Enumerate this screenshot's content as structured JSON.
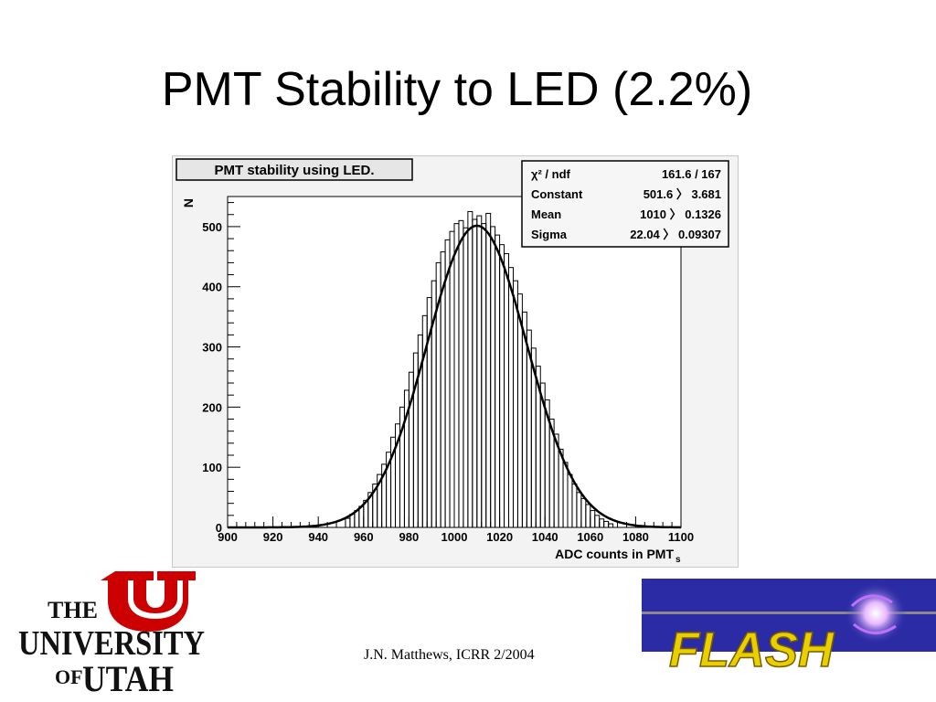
{
  "slide": {
    "title": "PMT Stability to LED (2.2%)",
    "footer": "J.N. Matthews, ICRR 2/2004"
  },
  "logos": {
    "utah": {
      "line1": "THE",
      "line2": "UNIVERSITY",
      "line3_of": "OF",
      "line3_utah": "UTAH",
      "color": "#cc0000"
    },
    "flash": {
      "text": "FLASH",
      "bg": "#2b2ba6",
      "text_color": "#e8d000"
    }
  },
  "chart_data": {
    "type": "histogram",
    "title": "PMT stability using LED.",
    "xlabel": "ADC counts in PMT",
    "xlabel_sub": "s",
    "ylabel": "N",
    "xlim": [
      900,
      1100
    ],
    "ylim": [
      0,
      550
    ],
    "xticks": [
      900,
      920,
      940,
      960,
      980,
      1000,
      1020,
      1040,
      1060,
      1080,
      1100
    ],
    "yticks": [
      0,
      100,
      200,
      300,
      400,
      500
    ],
    "bin_width": 2,
    "stats_box": [
      {
        "label": "χ² / ndf",
        "value": "161.6 / 167"
      },
      {
        "label": "Constant",
        "value": "501.6 〉 3.681"
      },
      {
        "label": "Mean",
        "value": "1010 〉 0.1326"
      },
      {
        "label": "Sigma",
        "value": "22.04 〉 0.09307"
      }
    ],
    "fit": {
      "function": "gaus",
      "constant": 501.6,
      "mean": 1010,
      "sigma": 22.04
    },
    "histogram": {
      "x": [
        952,
        954,
        956,
        958,
        960,
        962,
        964,
        966,
        968,
        970,
        972,
        974,
        976,
        978,
        980,
        982,
        984,
        986,
        988,
        990,
        992,
        994,
        996,
        998,
        1000,
        1002,
        1004,
        1006,
        1008,
        1010,
        1012,
        1014,
        1016,
        1018,
        1020,
        1022,
        1024,
        1026,
        1028,
        1030,
        1032,
        1034,
        1036,
        1038,
        1040,
        1042,
        1044,
        1046,
        1048,
        1050,
        1052,
        1054,
        1056,
        1058,
        1060,
        1062,
        1064,
        1066,
        1068
      ],
      "y": [
        15,
        22,
        28,
        35,
        45,
        58,
        72,
        88,
        105,
        125,
        150,
        172,
        200,
        228,
        258,
        290,
        320,
        352,
        382,
        410,
        440,
        458,
        478,
        492,
        505,
        510,
        498,
        525,
        512,
        518,
        505,
        522,
        500,
        486,
        470,
        455,
        432,
        410,
        388,
        358,
        328,
        298,
        268,
        240,
        212,
        180,
        155,
        130,
        108,
        88,
        72,
        58,
        48,
        38,
        28,
        20,
        14,
        10,
        6
      ]
    }
  }
}
